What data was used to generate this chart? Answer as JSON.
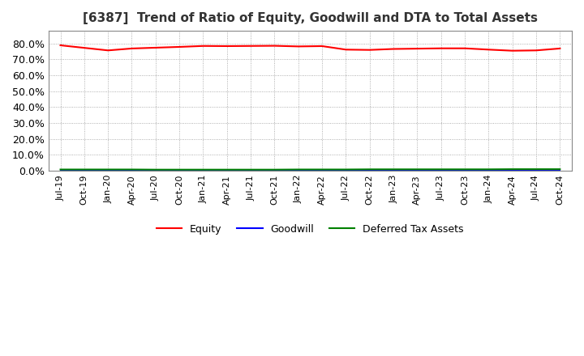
{
  "title": "[6387]  Trend of Ratio of Equity, Goodwill and DTA to Total Assets",
  "title_fontsize": 11,
  "background_color": "#ffffff",
  "plot_bg_color": "#ffffff",
  "grid_color": "#999999",
  "ylim": [
    0,
    0.88
  ],
  "yticks": [
    0.0,
    0.1,
    0.2,
    0.3,
    0.4,
    0.5,
    0.6,
    0.7,
    0.8
  ],
  "ytick_labels": [
    "0.0%",
    "10.0%",
    "20.0%",
    "30.0%",
    "40.0%",
    "50.0%",
    "60.0%",
    "70.0%",
    "80.0%"
  ],
  "x_labels": [
    "Jul-19",
    "Oct-19",
    "Jan-20",
    "Apr-20",
    "Jul-20",
    "Oct-20",
    "Jan-21",
    "Apr-21",
    "Jul-21",
    "Oct-21",
    "Jan-22",
    "Apr-22",
    "Jul-22",
    "Oct-22",
    "Jan-23",
    "Apr-23",
    "Jul-23",
    "Oct-23",
    "Jan-24",
    "Apr-24",
    "Jul-24",
    "Oct-24"
  ],
  "equity": [
    0.789,
    0.773,
    0.757,
    0.769,
    0.774,
    0.779,
    0.785,
    0.784,
    0.785,
    0.786,
    0.782,
    0.784,
    0.762,
    0.76,
    0.766,
    0.768,
    0.77,
    0.77,
    0.762,
    0.755,
    0.757,
    0.769
  ],
  "goodwill": [
    0.0,
    0.0,
    0.0,
    0.0,
    0.0,
    0.0,
    0.0,
    0.0,
    0.0,
    0.0,
    0.0,
    0.0,
    0.0,
    0.0,
    0.0,
    0.0,
    0.0,
    0.0,
    0.0,
    0.0,
    0.0,
    0.0
  ],
  "dta": [
    0.008,
    0.008,
    0.008,
    0.008,
    0.007,
    0.007,
    0.007,
    0.007,
    0.007,
    0.007,
    0.008,
    0.008,
    0.008,
    0.009,
    0.009,
    0.009,
    0.009,
    0.009,
    0.009,
    0.01,
    0.01,
    0.01
  ],
  "equity_color": "#ff0000",
  "goodwill_color": "#0000ff",
  "dta_color": "#008000",
  "line_width": 1.5,
  "legend_labels": [
    "Equity",
    "Goodwill",
    "Deferred Tax Assets"
  ],
  "legend_fontsize": 9,
  "tick_fontsize": 8,
  "ytick_fontsize": 9
}
